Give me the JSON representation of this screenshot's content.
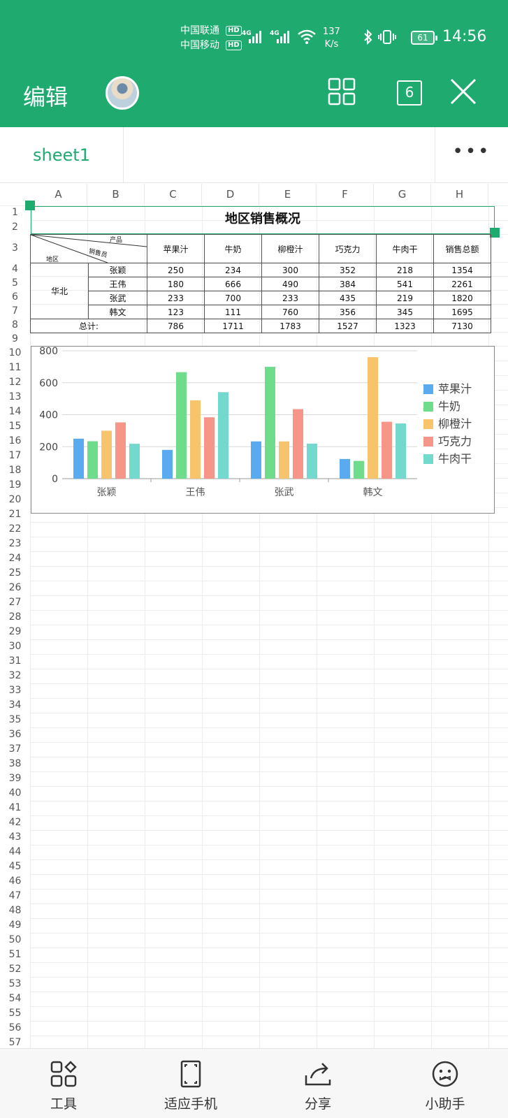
{
  "status_bar": {
    "carrier1": "中国联通",
    "carrier2": "中国移动",
    "hd": "HD",
    "network": "4G",
    "speed_value": "137",
    "speed_unit": "K/s",
    "battery": "61",
    "time": "14:56"
  },
  "header": {
    "title": "编辑",
    "windows_count": "6"
  },
  "tabs": {
    "active_sheet": "sheet1",
    "more": "•••"
  },
  "columns": [
    "A",
    "B",
    "C",
    "D",
    "E",
    "F",
    "G",
    "H"
  ],
  "rows": [
    "1",
    "2",
    "3",
    "4",
    "5",
    "6",
    "7",
    "8",
    "9",
    "10",
    "11",
    "12",
    "13",
    "14",
    "15",
    "16",
    "17",
    "18",
    "19",
    "20",
    "21",
    "22",
    "23",
    "24",
    "25",
    "26",
    "27",
    "28",
    "29",
    "30",
    "31",
    "32",
    "33",
    "34",
    "35",
    "36",
    "37",
    "38",
    "39",
    "40",
    "41",
    "42",
    "43",
    "44",
    "45",
    "46",
    "47",
    "48",
    "49",
    "50",
    "51",
    "52",
    "53",
    "54",
    "55",
    "56",
    "57"
  ],
  "sheet": {
    "title": "地区销售概况",
    "diag_product": "产品",
    "diag_seller": "销售员",
    "diag_region": "地区",
    "headers": [
      "苹果汁",
      "牛奶",
      "柳橙汁",
      "巧克力",
      "牛肉干",
      "销售总额"
    ],
    "region": "华北",
    "rows": [
      {
        "name": "张颖",
        "values": [
          "250",
          "234",
          "300",
          "352",
          "218",
          "1354"
        ]
      },
      {
        "name": "王伟",
        "values": [
          "180",
          "666",
          "490",
          "384",
          "541",
          "2261"
        ]
      },
      {
        "name": "张武",
        "values": [
          "233",
          "700",
          "233",
          "435",
          "219",
          "1820"
        ]
      },
      {
        "name": "韩文",
        "values": [
          "123",
          "111",
          "760",
          "356",
          "345",
          "1695"
        ]
      }
    ],
    "total_label": "总计:",
    "totals": [
      "786",
      "1711",
      "1783",
      "1527",
      "1323",
      "7130"
    ]
  },
  "chart_data": {
    "type": "bar",
    "categories": [
      "张颖",
      "王伟",
      "张武",
      "韩文"
    ],
    "series": [
      {
        "name": "苹果汁",
        "color": "#5aaaf0",
        "values": [
          250,
          180,
          233,
          123
        ]
      },
      {
        "name": "牛奶",
        "color": "#6fdc8c",
        "values": [
          234,
          666,
          700,
          111
        ]
      },
      {
        "name": "柳橙汁",
        "color": "#f7c46c",
        "values": [
          300,
          490,
          233,
          760
        ]
      },
      {
        "name": "巧克力",
        "color": "#f69689",
        "values": [
          352,
          384,
          435,
          356
        ]
      },
      {
        "name": "牛肉干",
        "color": "#72d9cc",
        "values": [
          218,
          541,
          219,
          345
        ]
      }
    ],
    "yticks": [
      "0",
      "200",
      "400",
      "600",
      "800"
    ],
    "ylim": [
      0,
      800
    ],
    "grid": true,
    "legend_position": "right"
  },
  "bottom_bar": {
    "tools": "工具",
    "fit_phone": "适应手机",
    "share": "分享",
    "assistant": "小助手"
  },
  "colors": {
    "accent": "#1faa70"
  }
}
